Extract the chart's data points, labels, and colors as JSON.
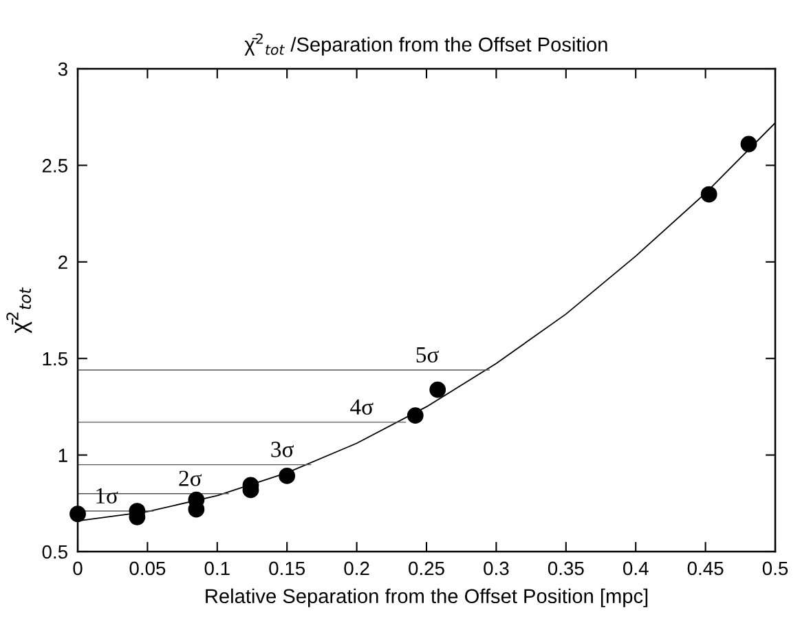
{
  "chart_data": {
    "type": "scatter",
    "title": "χ̄$^{2}$$_{tot}$ /Separation from the Offset Position",
    "xlabel": "Relative Separation from the Offset Position [mpc]",
    "ylabel": "χ̄$^{2}$$_{tot}$",
    "xlim": [
      0,
      0.5
    ],
    "ylim": [
      0.5,
      3
    ],
    "xticks": [
      0,
      0.05,
      0.1,
      0.15,
      0.2,
      0.25,
      0.3,
      0.35,
      0.4,
      0.45,
      0.5
    ],
    "yticks": [
      0.5,
      1,
      1.5,
      2,
      2.5,
      3
    ],
    "grid": false,
    "legend": false,
    "marker": "circle",
    "series": [
      {
        "color": "#000000",
        "x": [
          0,
          0.0426,
          0.0426,
          0.085,
          0.085,
          0.124,
          0.124,
          0.15,
          0.242,
          0.258,
          0.4525,
          0.481
        ],
        "values": [
          0.695,
          0.71,
          0.679,
          0.768,
          0.719,
          0.844,
          0.819,
          0.892,
          1.205,
          1.338,
          2.35,
          2.61
        ]
      },
      {
        "type": "line",
        "color": "#000000",
        "marker": "none",
        "x": [
          0,
          0.05,
          0.1,
          0.15,
          0.2,
          0.25,
          0.3,
          0.35,
          0.4,
          0.45,
          0.5
        ],
        "values": [
          0.659,
          0.707,
          0.79,
          0.908,
          1.061,
          1.25,
          1.474,
          1.73,
          2.03,
          2.356,
          2.72
        ]
      },
      {
        "type": "line",
        "color": "#555555",
        "marker": "none",
        "x": [
          0,
          0.054
        ],
        "values": [
          0.71,
          0.71
        ]
      },
      {
        "type": "line",
        "color": "#555555",
        "marker": "none",
        "x": [
          0,
          0.108
        ],
        "values": [
          0.8,
          0.8
        ]
      },
      {
        "type": "line",
        "color": "#555555",
        "marker": "none",
        "x": [
          0,
          0.167
        ],
        "values": [
          0.95,
          0.95
        ]
      },
      {
        "type": "line",
        "color": "#555555",
        "marker": "none",
        "x": [
          0,
          0.235
        ],
        "values": [
          1.17,
          1.17
        ]
      },
      {
        "type": "line",
        "color": "#555555",
        "marker": "none",
        "x": [
          0,
          0.295
        ],
        "values": [
          1.44,
          1.44
        ]
      }
    ],
    "annotations": [
      {
        "text": "1σ",
        "x": 0.012,
        "y": 0.71
      },
      {
        "text": "2σ",
        "x": 0.072,
        "y": 0.8
      },
      {
        "text": "3σ",
        "x": 0.138,
        "y": 0.95
      },
      {
        "text": "4σ",
        "x": 0.195,
        "y": 1.17
      },
      {
        "text": "5σ",
        "x": 0.242,
        "y": 1.44
      }
    ]
  }
}
